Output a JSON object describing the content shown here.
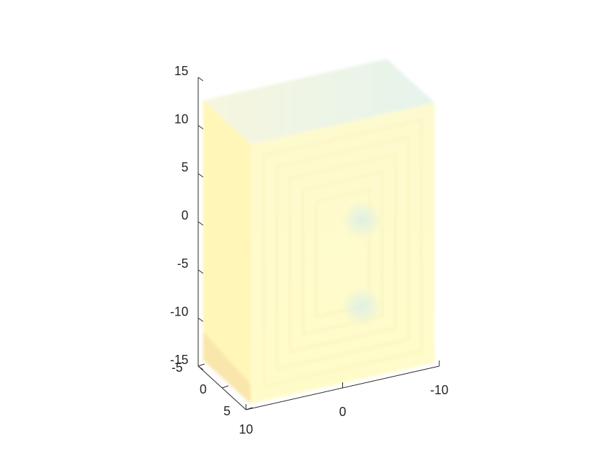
{
  "chart_data": {
    "type": "volume",
    "title": "",
    "xlabel": "",
    "ylabel": "",
    "zlabel": "",
    "x_axis": {
      "lim": [
        -10,
        10
      ],
      "ticks": [
        -10,
        0,
        10
      ],
      "tick_labels": [
        "-10",
        "0",
        "10"
      ]
    },
    "y_axis": {
      "lim": [
        -5,
        5
      ],
      "ticks": [
        -5,
        0,
        5
      ],
      "tick_labels": [
        "-5",
        "0",
        "5"
      ]
    },
    "z_axis": {
      "lim": [
        -15,
        15
      ],
      "ticks": [
        -15,
        -10,
        -5,
        0,
        5,
        10,
        15
      ],
      "tick_labels": [
        "-15",
        "-10",
        "-5",
        "0",
        "5",
        "10",
        "15"
      ]
    },
    "grid": false,
    "colors": {
      "volume_base": "#fffbc8",
      "volume_edge": "#fff5b0",
      "cool_spot": "#dcefe6",
      "top_band": "#dff0e8",
      "warm_corner": "#f7e0a8",
      "axis": "#262626"
    },
    "features": [
      {
        "name": "upper-blob",
        "x": -2,
        "y": 0,
        "z": 2
      },
      {
        "name": "lower-blob",
        "x": -2,
        "y": 0,
        "z": -7
      }
    ]
  }
}
